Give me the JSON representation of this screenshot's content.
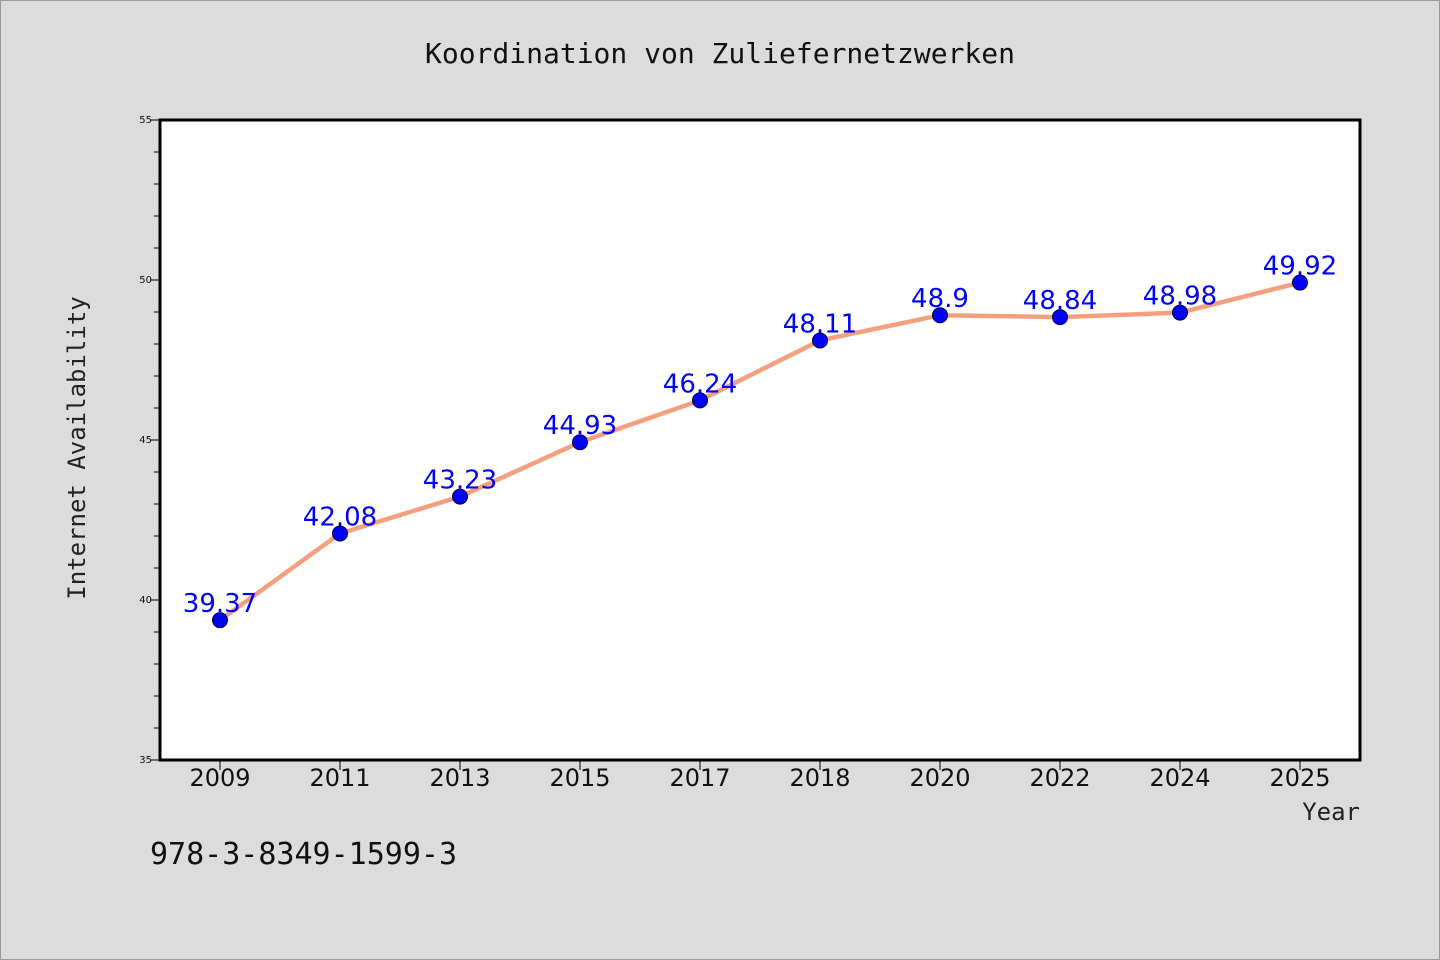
{
  "chart_data": {
    "type": "line",
    "title": "Koordination von Zuliefernetzwerken",
    "xlabel": "Year",
    "ylabel": "Internet Availability",
    "categories": [
      "2009",
      "2011",
      "2013",
      "2015",
      "2017",
      "2018",
      "2020",
      "2022",
      "2024",
      "2025"
    ],
    "series": [
      {
        "values": [
          39.37,
          42.08,
          43.23,
          44.93,
          46.24,
          48.11,
          48.9,
          48.84,
          48.98,
          49.92
        ],
        "labels": [
          "39.37",
          "42.08",
          "43.23",
          "44.93",
          "46.24",
          "48.11",
          "48.9",
          "48.84",
          "48.98",
          "49.92"
        ],
        "line_color": "#f4a07f",
        "marker_color": "#0000ff"
      }
    ],
    "ylim": [
      35,
      55
    ],
    "yticks": [
      "35",
      "40",
      "45",
      "50",
      "55"
    ],
    "grid": false,
    "legend": "none"
  },
  "footnote": "978-3-8349-1599-3",
  "colors": {
    "background": "#dcdcdc",
    "plot_background": "#ffffff",
    "line": "#f4a07f",
    "marker": "#0000ff",
    "data_label": "#0000ff"
  }
}
